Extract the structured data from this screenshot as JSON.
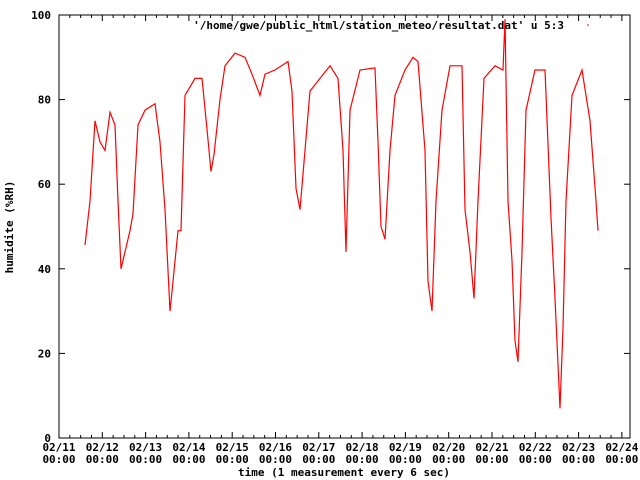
{
  "chart_data": {
    "type": "line",
    "title": "",
    "xlabel": "time (1 measurement every 6 sec)",
    "ylabel": "humidite (%RH)",
    "ylim": [
      0,
      100
    ],
    "yticks": [
      0,
      20,
      40,
      60,
      80,
      100
    ],
    "xlim": [
      "02/11 00:00",
      "02/24 04:30"
    ],
    "xticks": [
      [
        "02/11",
        "00:00"
      ],
      [
        "02/12",
        "00:00"
      ],
      [
        "02/13",
        "00:00"
      ],
      [
        "02/14",
        "00:00"
      ],
      [
        "02/15",
        "00:00"
      ],
      [
        "02/16",
        "00:00"
      ],
      [
        "02/17",
        "00:00"
      ],
      [
        "02/18",
        "00:00"
      ],
      [
        "02/19",
        "00:00"
      ],
      [
        "02/20",
        "00:00"
      ],
      [
        "02/21",
        "00:00"
      ],
      [
        "02/22",
        "00:00"
      ],
      [
        "02/23",
        "00:00"
      ],
      [
        "02/24",
        "00:00"
      ]
    ],
    "grid": false,
    "legend_position": "top-right",
    "series": [
      {
        "name": "'/home/gwe/public_html/station_meteo/resultat.dat' u 5:3",
        "color": "#ff0000",
        "points": [
          [
            "02/11 14:25",
            45.6
          ],
          [
            "02/11 17:11",
            56
          ],
          [
            "02/11 19:57",
            75
          ],
          [
            "02/11 22:44",
            70
          ],
          [
            "02/12 01:30",
            68
          ],
          [
            "02/12 04:16",
            77
          ],
          [
            "02/12 07:02",
            74
          ],
          [
            "02/12 08:42",
            56
          ],
          [
            "02/12 10:22",
            40
          ],
          [
            "02/12 12:35",
            44
          ],
          [
            "02/12 15:21",
            49
          ],
          [
            "02/12 17:01",
            53
          ],
          [
            "02/12 19:47",
            74
          ],
          [
            "02/12 23:40",
            77.5
          ],
          [
            "02/13 05:13",
            79
          ],
          [
            "02/13 07:59",
            70
          ],
          [
            "02/13 10:45",
            54
          ],
          [
            "02/13 13:32",
            30
          ],
          [
            "02/13 15:11",
            37
          ],
          [
            "02/13 17:58",
            49
          ],
          [
            "02/13 19:37",
            49
          ],
          [
            "02/13 21:50",
            81
          ],
          [
            "02/14 03:23",
            85
          ],
          [
            "02/14 07:16",
            85
          ],
          [
            "02/14 10:02",
            73
          ],
          [
            "02/14 12:15",
            63
          ],
          [
            "02/14 13:55",
            67
          ],
          [
            "02/14 17:14",
            80
          ],
          [
            "02/14 20:01",
            88
          ],
          [
            "02/15 01:34",
            91
          ],
          [
            "02/15 07:06",
            90
          ],
          [
            "02/15 10:59",
            86
          ],
          [
            "02/15 15:25",
            81
          ],
          [
            "02/15 18:11",
            86
          ],
          [
            "02/15 23:44",
            87
          ],
          [
            "02/16 06:56",
            89
          ],
          [
            "02/16 09:09",
            82
          ],
          [
            "02/16 11:22",
            59
          ],
          [
            "02/16 13:35",
            54
          ],
          [
            "02/16 16:22",
            68
          ],
          [
            "02/16 19:08",
            82
          ],
          [
            "02/17 00:40",
            85
          ],
          [
            "02/17 06:13",
            88
          ],
          [
            "02/17 10:39",
            85
          ],
          [
            "02/17 13:25",
            68
          ],
          [
            "02/17 15:05",
            44
          ],
          [
            "02/17 17:18",
            77.5
          ],
          [
            "02/17 22:50",
            87
          ],
          [
            "02/18 07:10",
            87.5
          ],
          [
            "02/18 08:49",
            70
          ],
          [
            "02/18 10:29",
            50
          ],
          [
            "02/18 12:42",
            47
          ],
          [
            "02/18 15:28",
            68
          ],
          [
            "02/18 18:14",
            81
          ],
          [
            "02/18 23:47",
            87
          ],
          [
            "02/19 04:13",
            90
          ],
          [
            "02/19 07:00",
            89
          ],
          [
            "02/19 10:52",
            68
          ],
          [
            "02/19 12:32",
            37
          ],
          [
            "02/19 14:45",
            30
          ],
          [
            "02/19 16:58",
            56
          ],
          [
            "02/19 20:18",
            77.5
          ],
          [
            "02/20 00:44",
            88
          ],
          [
            "02/20 07:23",
            88
          ],
          [
            "02/20 09:03",
            54
          ],
          [
            "02/20 11:49",
            44
          ],
          [
            "02/20 14:02",
            33
          ],
          [
            "02/20 16:15",
            56
          ],
          [
            "02/20 19:35",
            85
          ],
          [
            "02/21 01:40",
            88
          ],
          [
            "02/21 06:07",
            87
          ],
          [
            "02/21 07:13",
            99
          ],
          [
            "02/21 08:53",
            56
          ],
          [
            "02/21 11:06",
            42
          ],
          [
            "02/21 12:46",
            23
          ],
          [
            "02/21 14:25",
            18
          ],
          [
            "02/21 16:38",
            44
          ],
          [
            "02/21 18:52",
            77.5
          ],
          [
            "02/21 23:51",
            87
          ],
          [
            "02/22 05:23",
            87
          ],
          [
            "02/22 08:43",
            52
          ],
          [
            "02/22 10:56",
            33
          ],
          [
            "02/22 13:42",
            7
          ],
          [
            "02/22 15:22",
            26
          ],
          [
            "02/22 17:02",
            56
          ],
          [
            "02/22 20:22",
            81
          ],
          [
            "02/23 01:54",
            87
          ],
          [
            "02/23 06:20",
            75
          ],
          [
            "02/23 09:40",
            56
          ],
          [
            "02/23 10:46",
            49
          ]
        ]
      }
    ]
  }
}
